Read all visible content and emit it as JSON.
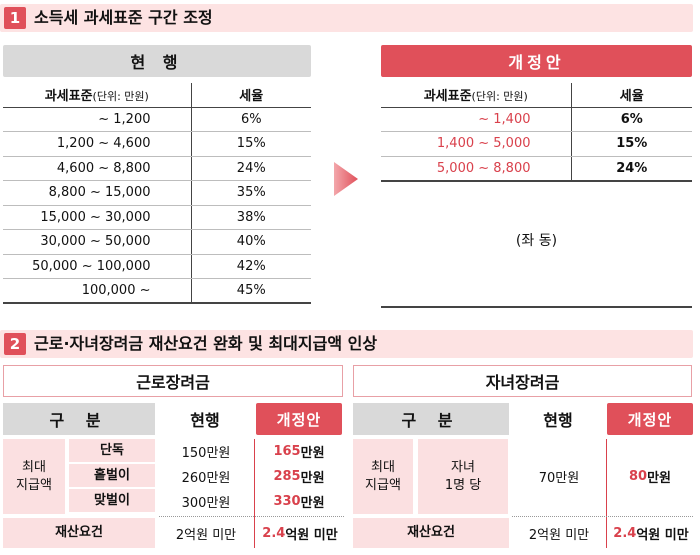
{
  "section1": {
    "number": "1",
    "title": "소득세 과세표준 구간 조정",
    "current_header": "현 행",
    "proposal_header": "개정안",
    "col_bracket": "과세표준",
    "col_unit": "(단위: 만원)",
    "col_rate": "세율",
    "current_rows": [
      {
        "range": "~ 1,200",
        "rate": "6%"
      },
      {
        "range": "1,200 ~ 4,600",
        "rate": "15%"
      },
      {
        "range": "4,600 ~ 8,800",
        "rate": "24%"
      },
      {
        "range": "8,800 ~ 15,000",
        "rate": "35%"
      },
      {
        "range": "15,000 ~ 30,000",
        "rate": "38%"
      },
      {
        "range": "30,000 ~ 50,000",
        "rate": "40%"
      },
      {
        "range": "50,000 ~ 100,000",
        "rate": "42%"
      },
      {
        "range": "100,000 ~",
        "rate": "45%"
      }
    ],
    "proposal_rows": [
      {
        "range": "~ 1,400",
        "rate": "6%"
      },
      {
        "range": "1,400 ~ 5,000",
        "rate": "15%"
      },
      {
        "range": "5,000 ~ 8,800",
        "rate": "24%"
      }
    ],
    "same_note": "(좌 동)"
  },
  "section2": {
    "number": "2",
    "title": "근로·자녀장려금 재산요건 완화 및 최대지급액 인상",
    "earned": {
      "title": "근로장려금",
      "col_category": "구 분",
      "col_current": "현행",
      "col_proposal": "개정안",
      "max_label_1": "최대",
      "max_label_2": "지급액",
      "rows": [
        {
          "label": "단독",
          "current": "150만원",
          "prop_num": "165",
          "prop_unit": "만원"
        },
        {
          "label": "홑벌이",
          "current": "260만원",
          "prop_num": "285",
          "prop_unit": "만원"
        },
        {
          "label": "맞벌이",
          "current": "300만원",
          "prop_num": "330",
          "prop_unit": "만원"
        }
      ],
      "asset_label": "재산요건",
      "asset_current": "2억원 미만",
      "asset_prop_num": "2.4",
      "asset_prop_unit": "억원 미만"
    },
    "child": {
      "title": "자녀장려금",
      "col_category": "구 분",
      "col_current": "현행",
      "col_proposal": "개정안",
      "max_label_1": "최대",
      "max_label_2": "지급액",
      "row_label_1": "자녀",
      "row_label_2": "1명 당",
      "current": "70만원",
      "prop_num": "80",
      "prop_unit": "만원",
      "asset_label": "재산요건",
      "asset_current": "2억원 미만",
      "asset_prop_num": "2.4",
      "asset_prop_unit": "억원 미만"
    }
  },
  "colors": {
    "accent": "#e0505a",
    "pink_bg": "#fde3e3",
    "gray_header": "#d9d9d9"
  }
}
